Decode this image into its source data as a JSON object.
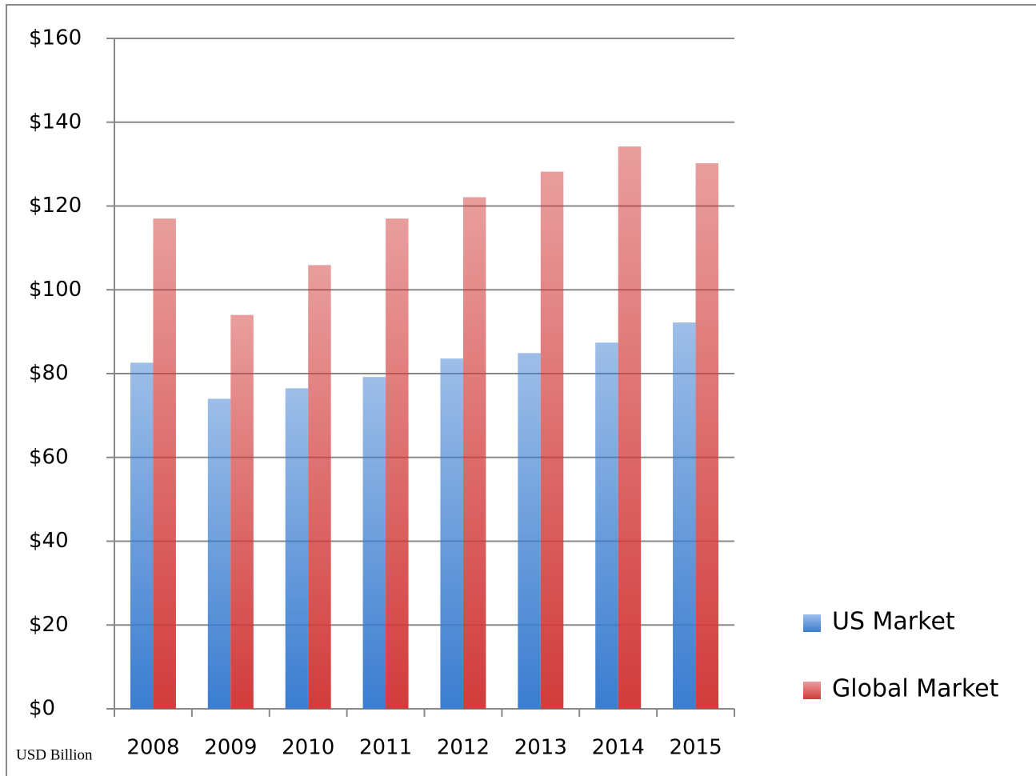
{
  "chart_data": {
    "type": "bar",
    "categories": [
      "2008",
      "2009",
      "2010",
      "2011",
      "2012",
      "2013",
      "2014",
      "2015"
    ],
    "series": [
      {
        "name": "US Market",
        "color": "#3b7dd0",
        "values": [
          82.6,
          74,
          76.5,
          79.2,
          83.6,
          84.9,
          87.4,
          92.2
        ]
      },
      {
        "name": "Global Market",
        "color": "#d23c3c",
        "values": [
          117,
          94,
          105.9,
          117,
          122.1,
          128.2,
          134.2,
          130.2
        ]
      }
    ],
    "y_label": "USD Billion",
    "ylim": [
      0,
      160
    ],
    "yticks": [
      {
        "value": 0,
        "label": "$0"
      },
      {
        "value": 20,
        "label": "$20"
      },
      {
        "value": 40,
        "label": "$40"
      },
      {
        "value": 60,
        "label": "$60"
      },
      {
        "value": 80,
        "label": "$80"
      },
      {
        "value": 100,
        "label": "$100"
      },
      {
        "value": 120,
        "label": "$120"
      },
      {
        "value": 140,
        "label": "$140"
      },
      {
        "value": 160,
        "label": "$160"
      }
    ],
    "grid": true,
    "legend": "right"
  }
}
